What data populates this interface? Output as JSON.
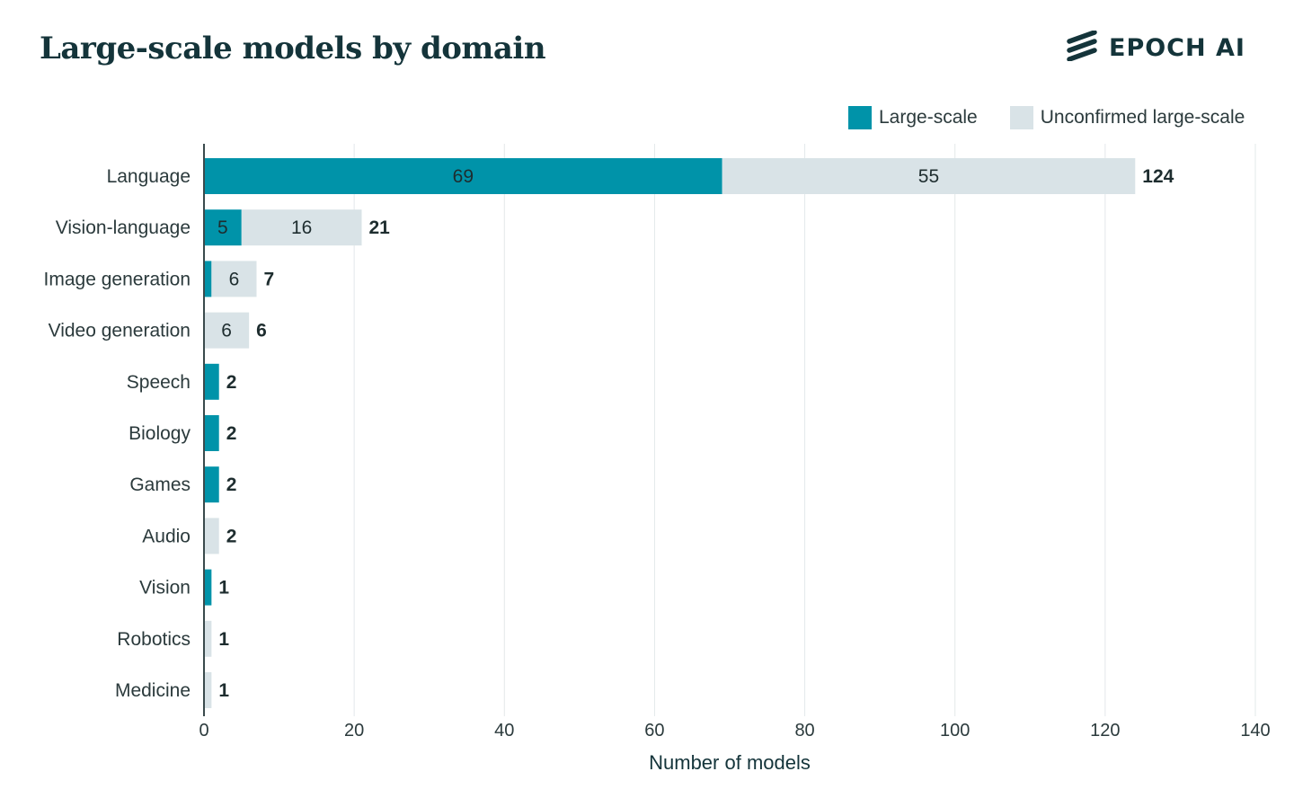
{
  "header": {
    "title": "Large-scale models by domain",
    "brand": "EPOCH AI",
    "brand_icon": "epoch-stripes-logo"
  },
  "legend": [
    {
      "label": "Large-scale",
      "color": "#0093a9"
    },
    {
      "label": "Unconfirmed large-scale",
      "color": "#d9e3e7"
    }
  ],
  "chart_data": {
    "type": "bar",
    "orientation": "horizontal",
    "stacked": true,
    "title": "Large-scale models by domain",
    "xlabel": "Number of models",
    "ylabel": "",
    "xlim": [
      0,
      140
    ],
    "xticks": [
      0,
      20,
      40,
      60,
      80,
      100,
      120,
      140
    ],
    "grid": true,
    "legend_position": "top-right",
    "categories": [
      "Language",
      "Vision-language",
      "Image generation",
      "Video generation",
      "Speech",
      "Biology",
      "Games",
      "Audio",
      "Vision",
      "Robotics",
      "Medicine"
    ],
    "series": [
      {
        "name": "Large-scale",
        "color": "#0093a9",
        "values": [
          69,
          5,
          1,
          0,
          2,
          2,
          2,
          0,
          1,
          0,
          0
        ],
        "labels": [
          "69",
          "5",
          "",
          "",
          "",
          "",
          "",
          "",
          "",
          "",
          ""
        ]
      },
      {
        "name": "Unconfirmed large-scale",
        "color": "#d9e3e7",
        "values": [
          55,
          16,
          6,
          6,
          0,
          0,
          0,
          2,
          0,
          1,
          1
        ],
        "labels": [
          "55",
          "16",
          "6",
          "6",
          "",
          "",
          "",
          "",
          "",
          "",
          ""
        ]
      }
    ],
    "totals": [
      124,
      21,
      7,
      6,
      2,
      2,
      2,
      2,
      1,
      1,
      1
    ]
  }
}
